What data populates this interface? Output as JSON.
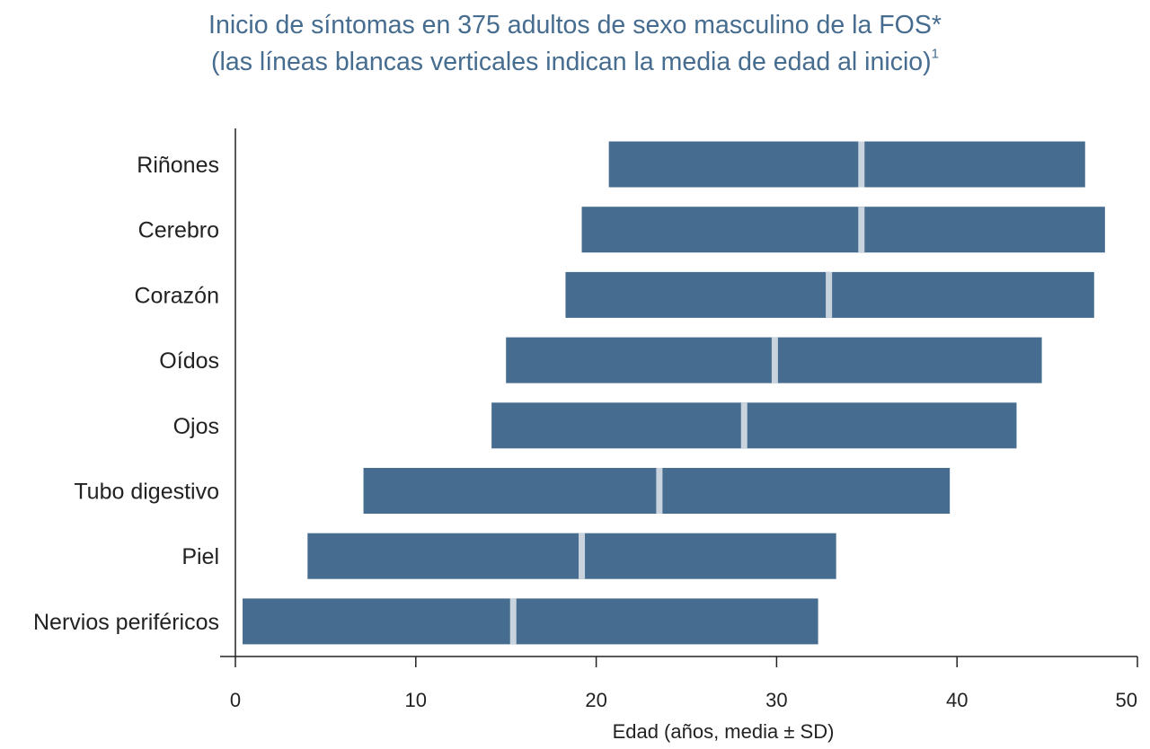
{
  "chart_data": {
    "type": "bar",
    "subtype": "horizontal-range",
    "title_line1": "Inicio de síntomas en 375 adultos de sexo masculino de la FOS*",
    "title_line2": "(las líneas blancas verticales indican la media de edad al inicio)",
    "title_superscript": "1",
    "xlabel": "Edad (años, media ± SD)",
    "ylabel": "",
    "xlim": [
      0,
      50
    ],
    "xticks": [
      "0",
      "10",
      "20",
      "30",
      "40",
      "50"
    ],
    "grid": false,
    "categories": [
      "Riñones",
      "Cerebro",
      "Corazón",
      "Oídos",
      "Ojos",
      "Tubo digestivo",
      "Piel",
      "Nervios periféricos"
    ],
    "series": [
      {
        "values": [
          {
            "low": 20.7,
            "mean": 34.7,
            "high": 47.1
          },
          {
            "low": 19.2,
            "mean": 34.7,
            "high": 48.2
          },
          {
            "low": 18.3,
            "mean": 32.9,
            "high": 47.6
          },
          {
            "low": 15.0,
            "mean": 29.9,
            "high": 44.7
          },
          {
            "low": 14.2,
            "mean": 28.2,
            "high": 43.3
          },
          {
            "low": 7.1,
            "mean": 23.5,
            "high": 39.6
          },
          {
            "low": 4.0,
            "mean": 19.2,
            "high": 33.3
          },
          {
            "low": 0.4,
            "mean": 15.4,
            "high": 32.3
          }
        ]
      }
    ],
    "colors": {
      "bar": "#466c8f",
      "mean_line": "#c9d3dd",
      "axis": "#222222",
      "title": "#466c8f"
    }
  }
}
